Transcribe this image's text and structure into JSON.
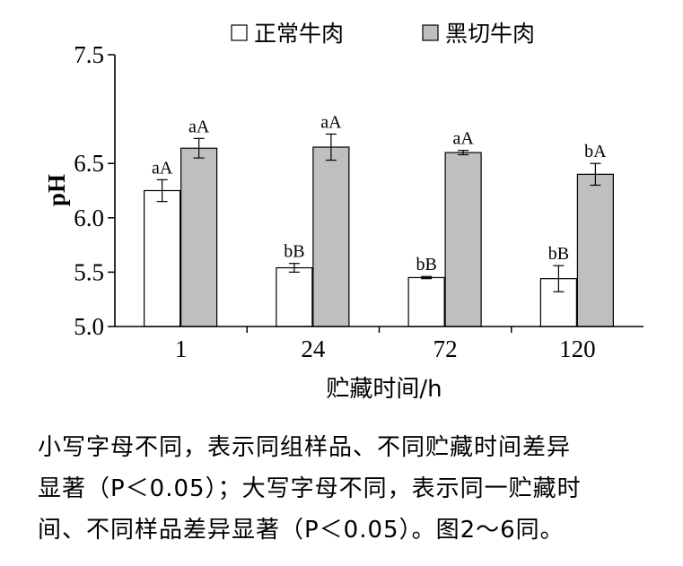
{
  "chart_data": {
    "type": "bar",
    "categories": [
      "1",
      "24",
      "72",
      "120"
    ],
    "series": [
      {
        "name": "正常牛肉",
        "values": [
          6.25,
          5.54,
          5.45,
          5.44
        ],
        "errors": [
          0.1,
          0.04,
          0.01,
          0.12
        ],
        "labels": [
          "aA",
          "bB",
          "bB",
          "bB"
        ],
        "fill": "#ffffff"
      },
      {
        "name": "黑切牛肉",
        "values": [
          6.64,
          6.65,
          6.6,
          6.4
        ],
        "errors": [
          0.09,
          0.12,
          0.02,
          0.1
        ],
        "labels": [
          "aA",
          "aA",
          "aA",
          "bA"
        ],
        "fill": "#bfbfbf"
      }
    ],
    "ylabel": "pH",
    "xlabel": "贮藏时间/h",
    "ylim": [
      5.0,
      7.5
    ],
    "yticks": [
      "5.0",
      "5.5",
      "6.0",
      "6.5",
      "7.5"
    ],
    "ytick_values": [
      5.0,
      5.5,
      6.0,
      6.5,
      7.5
    ],
    "legend_position": "top",
    "grid": false
  },
  "caption": {
    "line1": "小写字母不同，表示同组样品、不同贮藏时间差异",
    "line2": "显著（P＜0.05）；大写字母不同，表示同一贮藏时",
    "line3": "间、不同样品差异显著（P＜0.05）。图2～6同。"
  }
}
